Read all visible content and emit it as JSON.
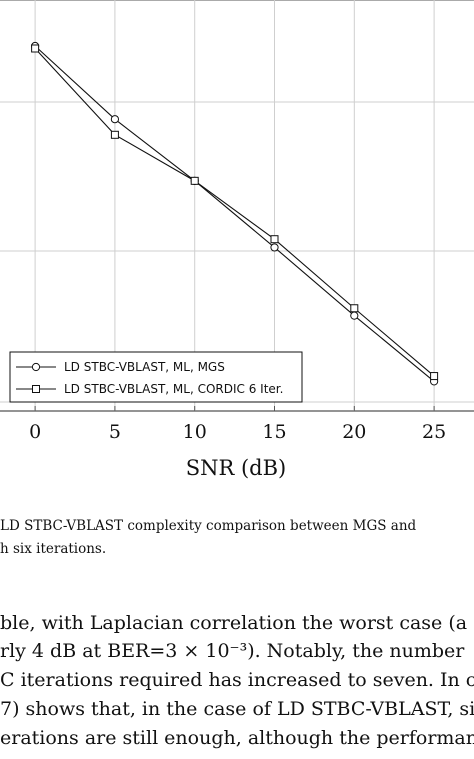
{
  "chart_data": {
    "type": "line",
    "xlabel": "SNR (dB)",
    "ylabel": "",
    "x": [
      0,
      5,
      10,
      15,
      20,
      25
    ],
    "xticks": [
      "0",
      "5",
      "10",
      "15",
      "20",
      "25"
    ],
    "xlim": [
      -2.2,
      27.5
    ],
    "ylim": [
      0,
      1
    ],
    "grid": true,
    "legend_position": "bottom-left",
    "series": [
      {
        "name": "LD STBC-VBLAST, ML, MGS",
        "marker": "circle",
        "values": [
          0.888,
          0.71,
          0.56,
          0.398,
          0.232,
          0.072
        ]
      },
      {
        "name": "LD STBC-VBLAST, ML, CORDIC 6 Iter.",
        "marker": "square",
        "values": [
          0.882,
          0.672,
          0.56,
          0.418,
          0.25,
          0.085
        ]
      }
    ]
  },
  "caption": {
    "line1": "LD STBC-VBLAST complexity comparison between MGS and",
    "line2": "h six iterations."
  },
  "body": {
    "line1": "ble, with Laplacian correlation the worst case (a",
    "line2": "rly 4 dB at BER=3 × 10⁻³). Notably, the number",
    "line3": "C iterations required has increased to seven. In con-",
    "line4": "7) shows that, in the case of LD STBC-VBLAST, six",
    "line5": "erations are still enough, although the performance"
  }
}
